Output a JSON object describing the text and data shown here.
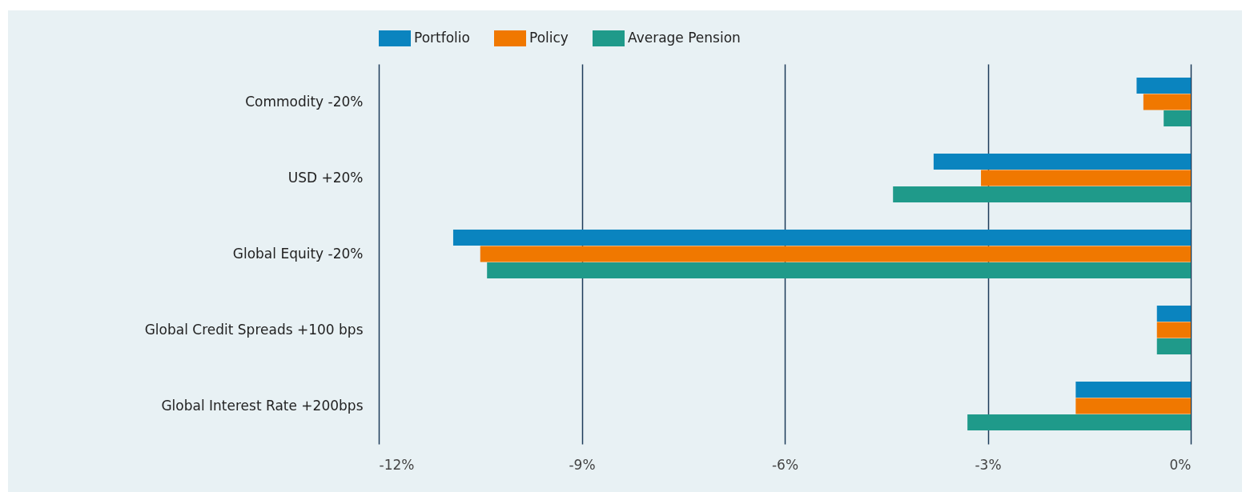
{
  "chart_data": {
    "type": "bar",
    "orientation": "horizontal",
    "categories": [
      "Commodity -20%",
      "USD +20%",
      "Global Equity -20%",
      "Global Credit Spreads +100 bps",
      "Global Interest Rate +200bps"
    ],
    "series": [
      {
        "name": "Portfolio",
        "color": "#0a84bf",
        "values": [
          -0.8,
          -3.8,
          -10.9,
          -0.5,
          -1.7
        ]
      },
      {
        "name": "Policy",
        "color": "#f07800",
        "values": [
          -0.7,
          -3.1,
          -10.5,
          -0.5,
          -1.7
        ]
      },
      {
        "name": "Average Pension",
        "color": "#1f9a8a",
        "values": [
          -0.4,
          -4.4,
          -10.4,
          -0.5,
          -3.3
        ]
      }
    ],
    "xlim": [
      -12,
      0
    ],
    "xticks": [
      {
        "value": -12,
        "label": "-12%"
      },
      {
        "value": -9,
        "label": "-9%"
      },
      {
        "value": -6,
        "label": "-6%"
      },
      {
        "value": -3,
        "label": "-3%"
      },
      {
        "value": 0,
        "label": "0%"
      }
    ],
    "grid": true,
    "legend": "top"
  }
}
